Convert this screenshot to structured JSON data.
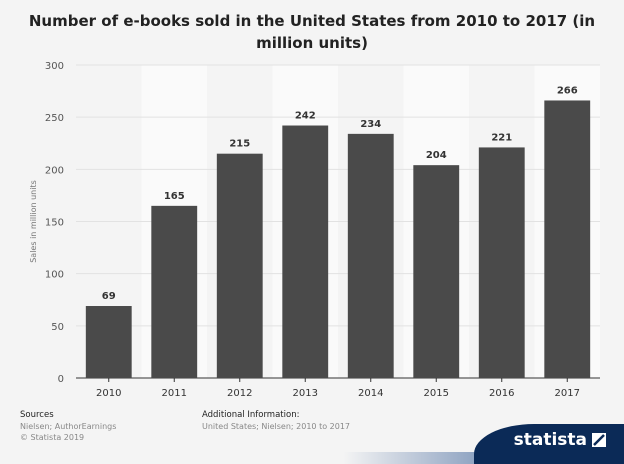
{
  "chart_data": {
    "type": "bar",
    "title": "Number of e-books sold in the United States from 2010 to 2017 (in million units)",
    "xlabel": "",
    "ylabel": "Sales in million units",
    "categories": [
      "2010",
      "2011",
      "2012",
      "2013",
      "2014",
      "2015",
      "2016",
      "2017"
    ],
    "values": [
      69,
      165,
      215,
      242,
      234,
      204,
      221,
      266
    ],
    "ylim": [
      0,
      300
    ],
    "yticks": [
      0,
      50,
      100,
      150,
      200,
      250,
      300
    ],
    "grid": true,
    "bar_color": "#4a4a4a"
  },
  "footer": {
    "sources_heading": "Sources",
    "sources_line1": "Nielsen; AuthorEarnings",
    "sources_line2": "© Statista 2019",
    "additional_heading": "Additional Information:",
    "additional_line": "United States; Nielsen; 2010 to 2017"
  },
  "brand": {
    "name": "statista",
    "color": "#0b2a57"
  }
}
